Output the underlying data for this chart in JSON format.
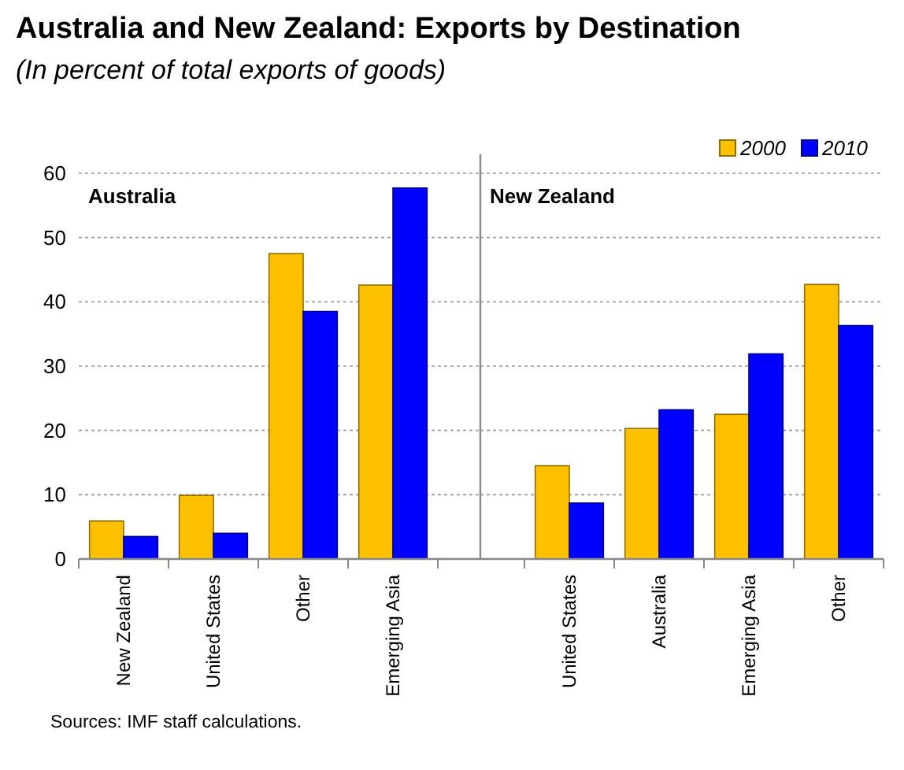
{
  "chart_data": [
    {
      "type": "bar",
      "title": "Australia and New Zealand: Exports by Destination",
      "subtitle": "(In percent of total exports of goods)",
      "categories": [
        "New Zealand",
        "United States",
        "Other",
        "Emerging Asia"
      ],
      "series": [
        {
          "color": "#ffc000",
          "values": [
            5.9,
            9.9,
            47.5,
            42.6
          ]
        },
        {
          "color": "#0000ff",
          "values": [
            3.5,
            4.0,
            38.5,
            57.7
          ]
        }
      ],
      "ylim": [
        0,
        60
      ],
      "yticks": [
        0,
        10,
        20,
        30,
        40,
        50,
        60
      ],
      "grid": "y",
      "legend": false,
      "annotations": [
        "Australia",
        "Sources: IMF staff calculations."
      ]
    },
    {
      "type": "bar",
      "categories": [
        "United States",
        "Australia",
        "Emerging Asia",
        "Other"
      ],
      "series": [
        {
          "name": "2000",
          "color": "#ffc000",
          "values": [
            14.5,
            20.3,
            22.5,
            42.7
          ]
        },
        {
          "name": "2010",
          "color": "#0000ff",
          "values": [
            8.7,
            23.2,
            31.9,
            36.3
          ]
        }
      ],
      "ylim": [
        0,
        60
      ],
      "yticks": [
        0,
        10,
        20,
        30,
        40,
        50,
        60
      ],
      "grid": "y",
      "legend": "top right",
      "tick_labels": "x",
      "annotations": [
        "New Zealand"
      ]
    }
  ]
}
